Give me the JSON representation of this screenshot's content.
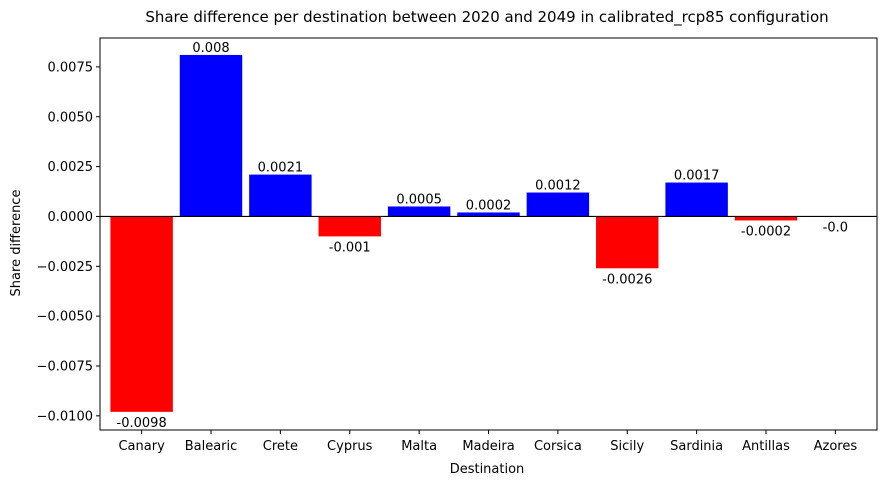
{
  "chart_data": {
    "type": "bar",
    "title": "Share difference per destination between 2020 and 2049 in calibrated_rcp85 configuration",
    "xlabel": "Destination",
    "ylabel": "Share difference",
    "categories": [
      "Canary",
      "Balearic",
      "Crete",
      "Cyprus",
      "Malta",
      "Madeira",
      "Corsica",
      "Sicily",
      "Sardinia",
      "Antillas",
      "Azores"
    ],
    "values": [
      -0.0098,
      0.0081,
      0.0021,
      -0.001,
      0.0005,
      0.0002,
      0.0012,
      -0.0026,
      0.0017,
      -0.0002,
      0.0
    ],
    "data_labels": [
      "-0.0098",
      "0.008",
      "0.0021",
      "-0.001",
      "0.0005",
      "0.0002",
      "0.0012",
      "-0.0026",
      "0.0017",
      "-0.0002",
      "-0.0"
    ],
    "yticks": [
      -0.01,
      -0.0075,
      -0.005,
      -0.0025,
      0.0,
      0.0025,
      0.005,
      0.0075
    ],
    "ytick_labels": [
      "−0.0100",
      "−0.0075",
      "−0.0050",
      "−0.0025",
      "0.0000",
      "0.0025",
      "0.0050",
      "0.0075"
    ],
    "ylim": [
      -0.01071,
      0.00895
    ],
    "grid": false,
    "zero_line": true,
    "colors": {
      "positive": "#0000ff",
      "negative": "#ff0000",
      "axis": "#000000"
    }
  }
}
